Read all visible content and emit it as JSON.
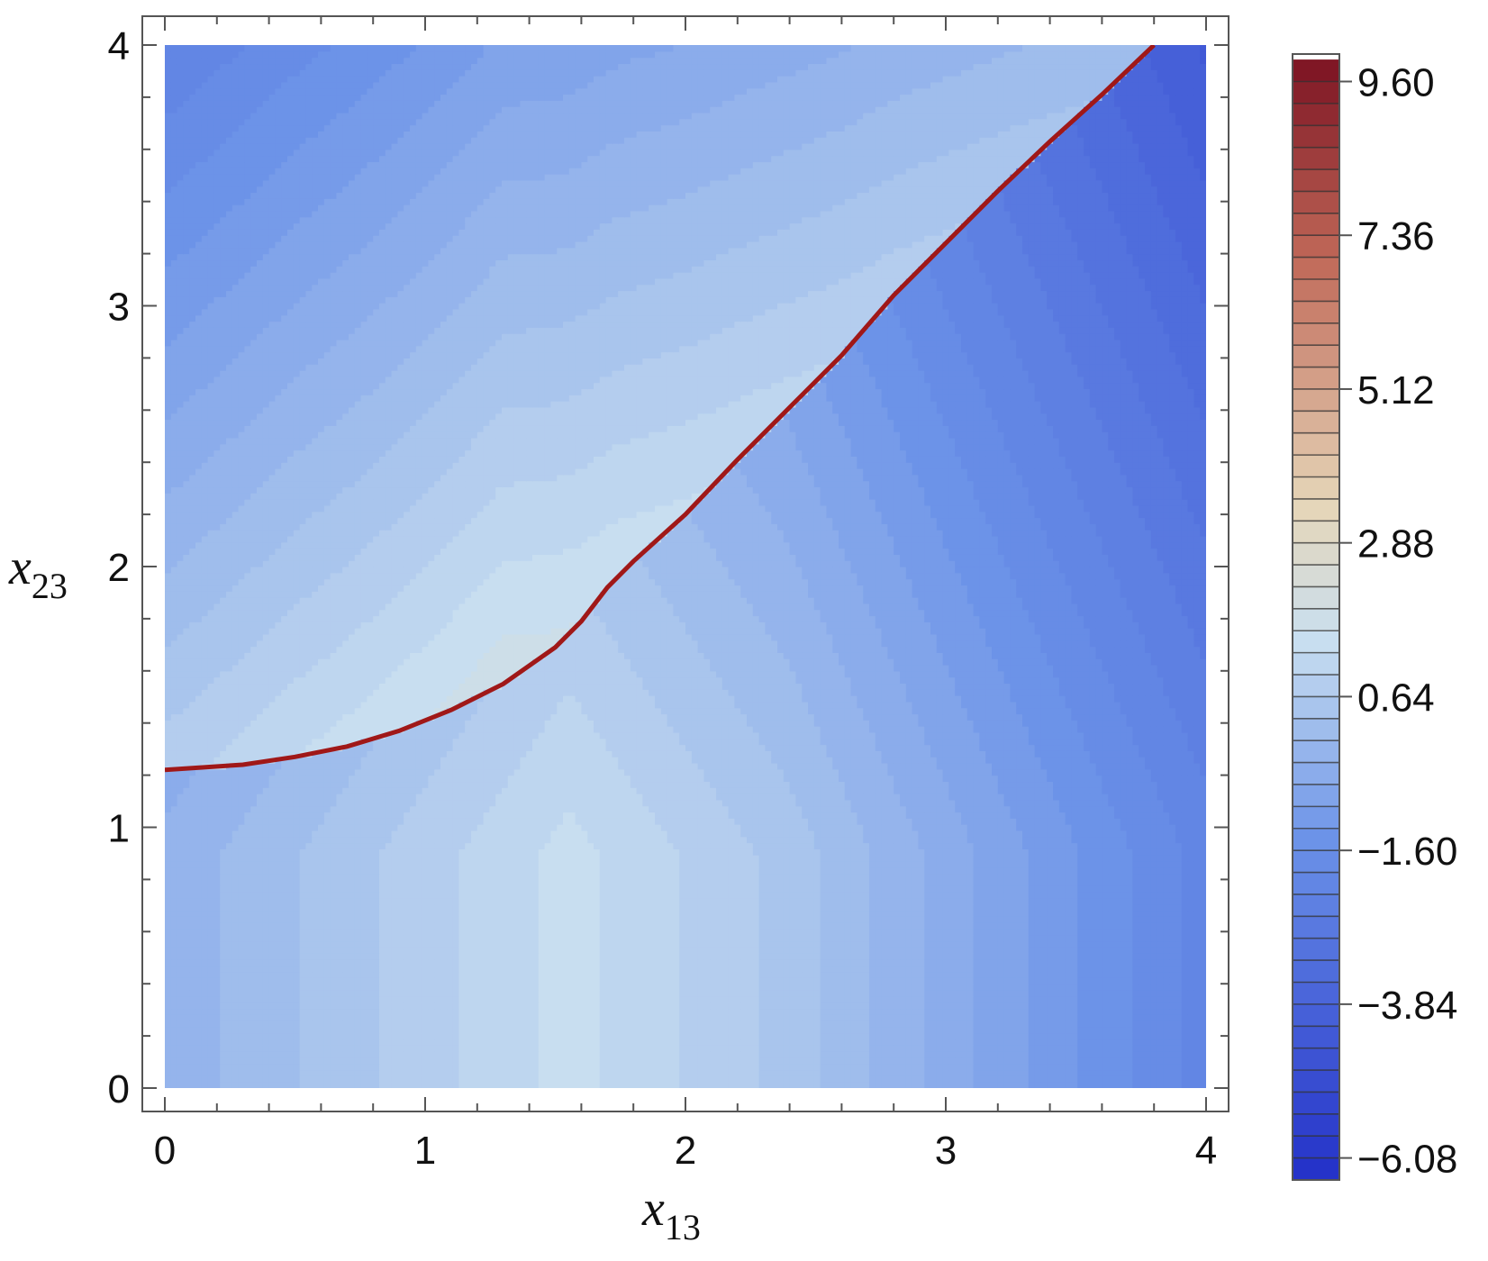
{
  "chart_data": {
    "type": "contour",
    "title": "",
    "x_axis": {
      "label": "x",
      "label_subscript": "13",
      "range": [
        0,
        4
      ],
      "major_ticks": [
        0,
        1,
        2,
        3,
        4
      ],
      "tick_labels": [
        "0",
        "1",
        "2",
        "3",
        "4"
      ]
    },
    "y_axis": {
      "label": "x",
      "label_subscript": "23",
      "range": [
        0,
        4
      ],
      "major_ticks": [
        0,
        1,
        2,
        3,
        4
      ],
      "tick_labels": [
        "0",
        "1",
        "2",
        "3",
        "4"
      ]
    },
    "colorbar": {
      "range": [
        -6.4,
        10.0
      ],
      "colors": [
        "#2330c8",
        "#6b92e8",
        "#c9dff0",
        "#e6d6b8",
        "#c06858",
        "#7a1020"
      ],
      "color_positions": [
        0.0,
        0.3,
        0.48,
        0.6,
        0.82,
        1.0
      ],
      "tick_values": [
        9.6,
        7.36,
        5.12,
        2.88,
        0.64,
        -1.6,
        -3.84,
        -6.08
      ],
      "tick_labels": [
        "9.60",
        "7.36",
        "5.12",
        "2.88",
        "0.64",
        "−1.60",
        "−3.84",
        "−6.08"
      ],
      "level_step": 0.32
    },
    "zero_contour": {
      "color": "#a01818",
      "points": [
        [
          0.0,
          1.22
        ],
        [
          0.3,
          1.24
        ],
        [
          0.5,
          1.27
        ],
        [
          0.7,
          1.31
        ],
        [
          0.9,
          1.37
        ],
        [
          1.1,
          1.45
        ],
        [
          1.3,
          1.55
        ],
        [
          1.5,
          1.69
        ],
        [
          1.6,
          1.79
        ],
        [
          1.7,
          1.92
        ],
        [
          1.8,
          2.02
        ],
        [
          2.0,
          2.2
        ],
        [
          2.2,
          2.41
        ],
        [
          2.4,
          2.61
        ],
        [
          2.6,
          2.81
        ],
        [
          2.8,
          3.04
        ],
        [
          3.0,
          3.24
        ],
        [
          3.2,
          3.44
        ],
        [
          3.4,
          3.63
        ],
        [
          3.6,
          3.81
        ],
        [
          3.8,
          4.0
        ]
      ]
    }
  }
}
